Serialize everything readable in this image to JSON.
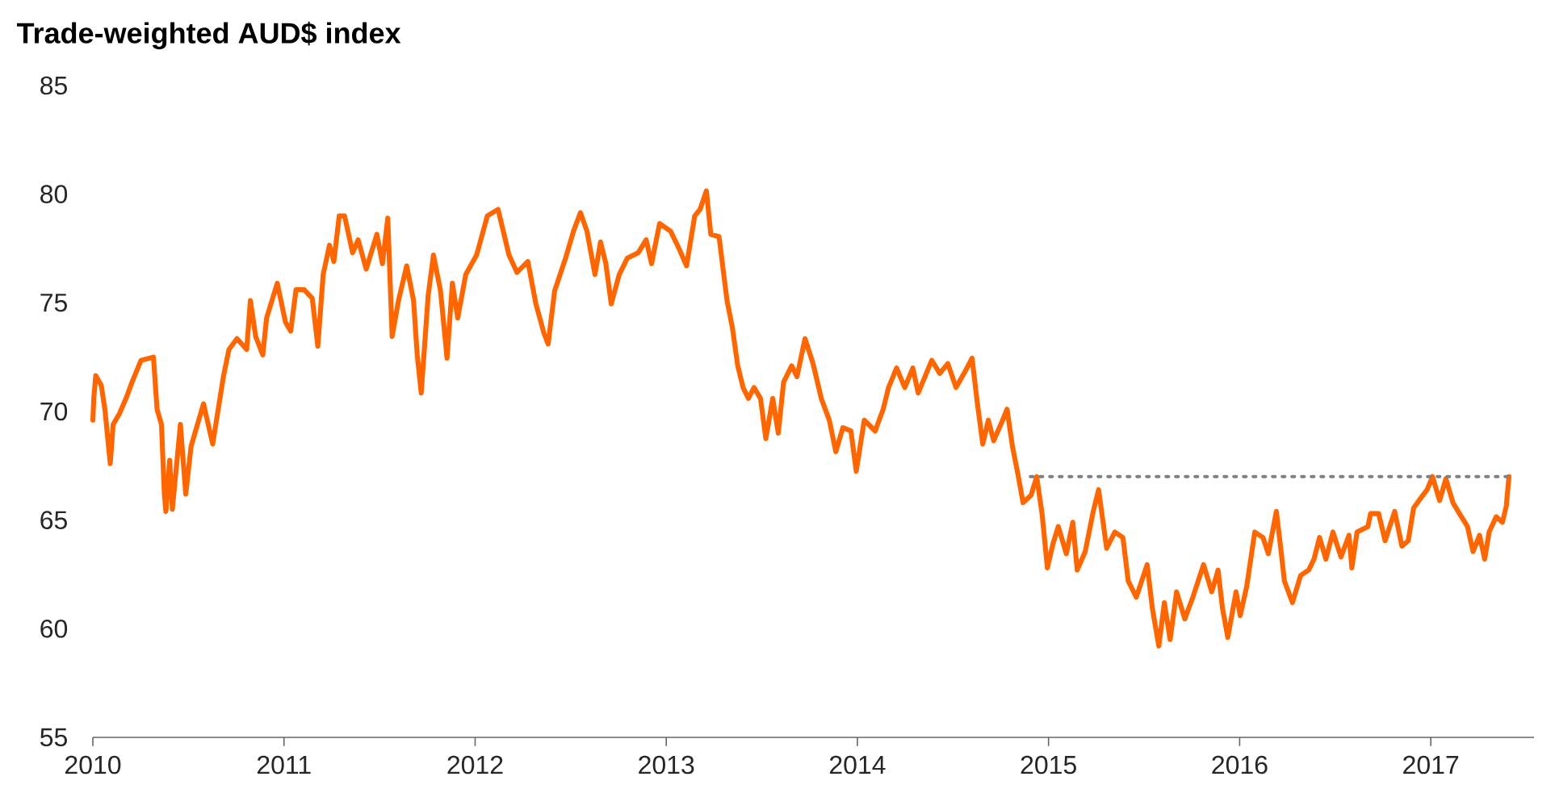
{
  "chart_data": {
    "type": "line",
    "title": "Trade-weighted AUD$ index",
    "xlim": [
      2010,
      2017.54
    ],
    "xticks": [
      2010,
      2011,
      2012,
      2013,
      2014,
      2015,
      2016,
      2017
    ],
    "ylim": [
      55,
      85
    ],
    "yticks": [
      55,
      60,
      65,
      70,
      75,
      80,
      85
    ],
    "series": [
      {
        "color": "#ff6600",
        "line_style": "solid",
        "x": [
          2010.0,
          2010.005,
          2010.015,
          2010.044,
          2010.063,
          2010.091,
          2010.106,
          2010.139,
          2010.176,
          2010.205,
          2010.252,
          2010.317,
          2010.336,
          2010.359,
          2010.374,
          2010.382,
          2010.402,
          2010.416,
          2010.458,
          2010.486,
          2010.514,
          2010.579,
          2010.627,
          2010.683,
          2010.712,
          2010.754,
          2010.805,
          2010.824,
          2010.852,
          2010.889,
          2010.909,
          2010.965,
          2011.008,
          2011.035,
          2011.063,
          2011.106,
          2011.148,
          2011.177,
          2011.205,
          2011.238,
          2011.261,
          2011.289,
          2011.317,
          2011.359,
          2011.388,
          2011.43,
          2011.486,
          2011.515,
          2011.543,
          2011.566,
          2011.599,
          2011.642,
          2011.678,
          2011.697,
          2011.718,
          2011.754,
          2011.782,
          2011.819,
          2011.853,
          2011.881,
          2011.909,
          2011.951,
          2012.008,
          2012.064,
          2012.12,
          2012.177,
          2012.219,
          2012.276,
          2012.318,
          2012.36,
          2012.382,
          2012.416,
          2012.473,
          2012.515,
          2012.551,
          2012.585,
          2012.627,
          2012.656,
          2012.684,
          2012.712,
          2012.754,
          2012.796,
          2012.853,
          2012.895,
          2012.923,
          2012.965,
          2013.022,
          2013.064,
          2013.106,
          2013.149,
          2013.177,
          2013.21,
          2013.233,
          2013.276,
          2013.318,
          2013.346,
          2013.374,
          2013.402,
          2013.43,
          2013.459,
          2013.493,
          2013.521,
          2013.557,
          2013.586,
          2013.614,
          2013.656,
          2013.684,
          2013.726,
          2013.768,
          2013.811,
          2013.853,
          2013.887,
          2013.924,
          2013.966,
          2013.994,
          2014.036,
          2014.093,
          2014.135,
          2014.163,
          2014.205,
          2014.248,
          2014.29,
          2014.318,
          2014.389,
          2014.431,
          2014.473,
          2014.516,
          2014.558,
          2014.6,
          2014.628,
          2014.656,
          2014.685,
          2014.713,
          2014.755,
          2014.783,
          2014.811,
          2014.839,
          2014.867,
          2014.909,
          2014.938,
          2014.966,
          2014.994,
          2015.023,
          2015.051,
          2015.093,
          2015.127,
          2015.15,
          2015.192,
          2015.234,
          2015.262,
          2015.304,
          2015.347,
          2015.389,
          2015.417,
          2015.459,
          2015.516,
          2015.543,
          2015.577,
          2015.606,
          2015.636,
          2015.67,
          2015.713,
          2015.755,
          2015.811,
          2015.854,
          2015.887,
          2015.91,
          2015.938,
          2015.981,
          2016.003,
          2016.037,
          2016.079,
          2016.122,
          2016.15,
          2016.192,
          2016.215,
          2016.234,
          2016.276,
          2016.319,
          2016.361,
          2016.389,
          2016.418,
          2016.451,
          2016.488,
          2016.53,
          2016.572,
          2016.587,
          2016.614,
          2016.671,
          2016.685,
          2016.727,
          2016.761,
          2016.811,
          2016.849,
          2016.882,
          2016.91,
          2016.938,
          2016.981,
          2017.009,
          2017.046,
          2017.079,
          2017.116,
          2017.15,
          2017.192,
          2017.221,
          2017.255,
          2017.282,
          2017.305,
          2017.342,
          2017.375,
          2017.395,
          2017.409
        ],
        "values": [
          69.6,
          70.6,
          71.65,
          71.2,
          70.1,
          67.6,
          69.4,
          69.9,
          70.65,
          71.35,
          72.35,
          72.5,
          70.1,
          69.4,
          66.2,
          65.4,
          67.75,
          65.5,
          69.4,
          66.2,
          68.4,
          70.35,
          68.5,
          71.6,
          72.85,
          73.35,
          72.85,
          75.1,
          73.45,
          72.6,
          74.3,
          75.9,
          74.1,
          73.7,
          75.6,
          75.6,
          75.2,
          73.0,
          76.3,
          77.65,
          76.9,
          79.0,
          79.0,
          77.3,
          77.9,
          76.55,
          78.15,
          76.8,
          78.9,
          73.45,
          75.1,
          76.7,
          75.1,
          72.6,
          70.85,
          75.3,
          77.2,
          75.55,
          72.45,
          75.9,
          74.3,
          76.3,
          77.2,
          79.0,
          79.3,
          77.2,
          76.4,
          76.9,
          74.95,
          73.6,
          73.1,
          75.55,
          77.05,
          78.3,
          79.15,
          78.3,
          76.3,
          77.8,
          76.8,
          74.95,
          76.3,
          77.05,
          77.3,
          77.9,
          76.8,
          78.65,
          78.3,
          77.55,
          76.7,
          79.0,
          79.3,
          80.15,
          78.15,
          78.05,
          75.1,
          73.85,
          72.1,
          71.1,
          70.6,
          71.1,
          70.6,
          68.75,
          70.6,
          69.0,
          71.35,
          72.1,
          71.6,
          73.35,
          72.2,
          70.6,
          69.6,
          68.15,
          69.25,
          69.1,
          67.25,
          69.6,
          69.1,
          70.1,
          71.1,
          72.0,
          71.1,
          72.0,
          70.85,
          72.35,
          71.75,
          72.2,
          71.1,
          71.75,
          72.45,
          70.35,
          68.5,
          69.6,
          68.65,
          69.5,
          70.1,
          68.4,
          67.15,
          65.8,
          66.15,
          67.0,
          65.3,
          62.8,
          63.9,
          64.7,
          63.45,
          64.9,
          62.7,
          63.55,
          65.4,
          66.4,
          63.7,
          64.45,
          64.2,
          62.2,
          61.45,
          62.95,
          60.95,
          59.2,
          61.2,
          59.5,
          61.7,
          60.45,
          61.45,
          62.95,
          61.7,
          62.7,
          60.95,
          59.6,
          61.7,
          60.6,
          61.95,
          64.45,
          64.2,
          63.45,
          65.4,
          63.7,
          62.2,
          61.2,
          62.45,
          62.7,
          63.2,
          64.2,
          63.2,
          64.45,
          63.3,
          64.3,
          62.8,
          64.45,
          64.7,
          65.3,
          65.3,
          64.05,
          65.4,
          63.8,
          64.05,
          65.55,
          65.9,
          66.4,
          67.0,
          65.9,
          66.9,
          65.8,
          65.3,
          64.7,
          63.55,
          64.3,
          63.2,
          64.45,
          65.15,
          64.9,
          65.65,
          67.0
        ]
      },
      {
        "color": "#808080",
        "line_style": "dotted",
        "x": [
          2014.905,
          2017.401
        ],
        "values": [
          67,
          67
        ]
      }
    ]
  }
}
